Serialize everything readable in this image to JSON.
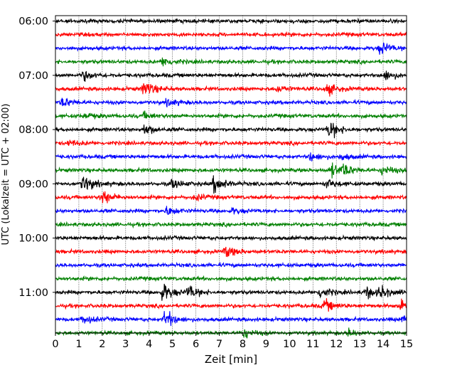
{
  "chart_data": {
    "type": "line",
    "chart_kind": "helicorder seismogram",
    "title": "",
    "xlabel": "Zeit  [min]",
    "ylabel": "UTC (Lokalzeit = UTC + 02:00)",
    "xlim": [
      0,
      15
    ],
    "x_ticks": [
      "0",
      "1",
      "2",
      "3",
      "4",
      "5",
      "6",
      "7",
      "8",
      "9",
      "10",
      "11",
      "12",
      "13",
      "14",
      "15"
    ],
    "y_ticks": [
      "06:00",
      "07:00",
      "08:00",
      "09:00",
      "10:00",
      "11:00"
    ],
    "y_ticks_minutes": [
      360,
      420,
      480,
      540,
      600,
      660
    ],
    "ylim_minutes": [
      354,
      705
    ],
    "vertical_gridlines": "dotted, each minute",
    "line_colors": [
      "#000000",
      "#ff0000",
      "#0000ff",
      "#008000"
    ],
    "trace_minutes_per_line": 15,
    "series": [
      {
        "start": "06:00",
        "color": "#000000",
        "events": []
      },
      {
        "start": "06:15",
        "color": "#ff0000",
        "events": []
      },
      {
        "start": "06:30",
        "color": "#0000ff",
        "events": [
          [
            13.9,
            0.7
          ]
        ]
      },
      {
        "start": "06:45",
        "color": "#008000",
        "events": [
          [
            4.6,
            0.5
          ]
        ]
      },
      {
        "start": "07:00",
        "color": "#000000",
        "events": [
          [
            1.2,
            0.5
          ],
          [
            14.1,
            0.5
          ]
        ]
      },
      {
        "start": "07:15",
        "color": "#ff0000",
        "events": [
          [
            3.8,
            0.9
          ],
          [
            9.5,
            0.4
          ],
          [
            11.6,
            0.6
          ]
        ]
      },
      {
        "start": "07:30",
        "color": "#0000ff",
        "events": [
          [
            0.3,
            0.5
          ],
          [
            4.8,
            0.4
          ]
        ]
      },
      {
        "start": "07:45",
        "color": "#008000",
        "events": [
          [
            1.3,
            0.3
          ],
          [
            3.8,
            0.3
          ]
        ]
      },
      {
        "start": "08:00",
        "color": "#000000",
        "events": [
          [
            3.8,
            0.6
          ],
          [
            11.7,
            1.0
          ]
        ]
      },
      {
        "start": "08:15",
        "color": "#ff0000",
        "events": [
          [
            0.6,
            0.3
          ]
        ]
      },
      {
        "start": "08:30",
        "color": "#0000ff",
        "events": [
          [
            10.9,
            0.5
          ],
          [
            12.2,
            0.3
          ]
        ]
      },
      {
        "start": "08:45",
        "color": "#008000",
        "events": [
          [
            11.8,
            0.7
          ],
          [
            12.3,
            0.6
          ],
          [
            14.0,
            0.5
          ]
        ]
      },
      {
        "start": "09:00",
        "color": "#000000",
        "events": [
          [
            1.2,
            0.9
          ],
          [
            5.0,
            0.5
          ],
          [
            6.8,
            1.0
          ],
          [
            11.6,
            0.5
          ]
        ]
      },
      {
        "start": "09:15",
        "color": "#ff0000",
        "events": [
          [
            2.0,
            0.8
          ],
          [
            6.0,
            0.3
          ]
        ]
      },
      {
        "start": "09:30",
        "color": "#0000ff",
        "events": [
          [
            4.8,
            0.5
          ],
          [
            7.6,
            0.3
          ]
        ]
      },
      {
        "start": "09:45",
        "color": "#008000",
        "events": []
      },
      {
        "start": "10:00",
        "color": "#000000",
        "events": []
      },
      {
        "start": "10:15",
        "color": "#ff0000",
        "events": [
          [
            7.3,
            0.6
          ]
        ]
      },
      {
        "start": "10:30",
        "color": "#0000ff",
        "events": []
      },
      {
        "start": "10:45",
        "color": "#008000",
        "events": []
      },
      {
        "start": "11:00",
        "color": "#000000",
        "events": [
          [
            4.6,
            1.0
          ],
          [
            5.7,
            0.7
          ],
          [
            11.3,
            0.6
          ],
          [
            13.3,
            0.6
          ],
          [
            13.9,
            0.6
          ]
        ]
      },
      {
        "start": "11:15",
        "color": "#ff0000",
        "events": [
          [
            11.5,
            0.6
          ],
          [
            14.7,
            0.5
          ]
        ]
      },
      {
        "start": "11:30",
        "color": "#0000ff",
        "events": [
          [
            1.2,
            0.5
          ],
          [
            4.7,
            1.0
          ],
          [
            14.9,
            0.5
          ]
        ]
      },
      {
        "start": "11:45",
        "color": "#008000",
        "events": [
          [
            8.0,
            0.6
          ],
          [
            12.5,
            0.4
          ]
        ]
      }
    ]
  }
}
